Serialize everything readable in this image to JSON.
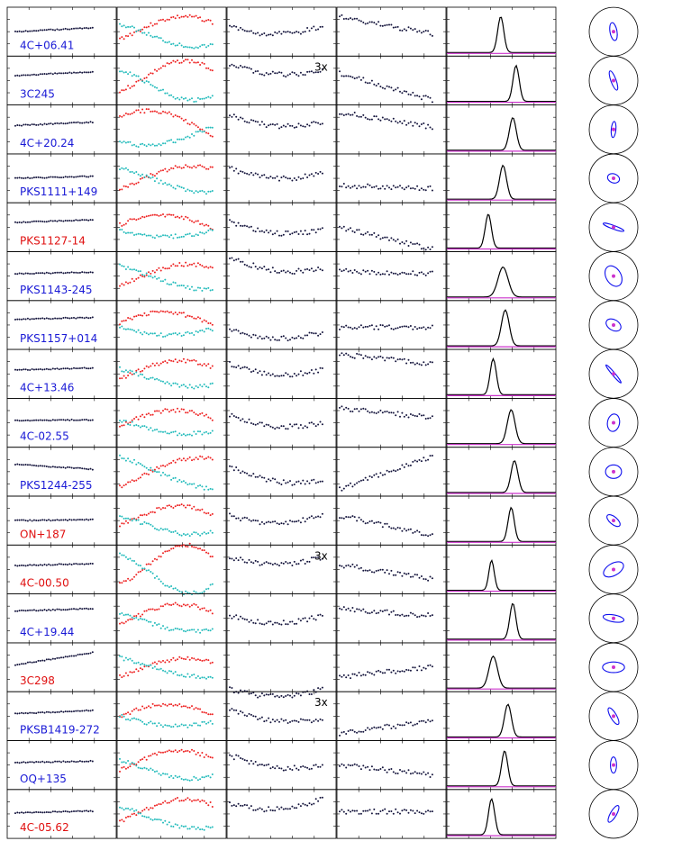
{
  "colors": {
    "blue_label": "#1a1ad6",
    "red_label": "#e01010",
    "red_pts": "#ee2222",
    "cyan_pts": "#22bbbb",
    "dark_pts": "#14143c",
    "profile": "#000000",
    "magenta": "#cc33cc",
    "circle_track": "#1010ee"
  },
  "chart_data": {
    "type": "scatter",
    "columns": 6,
    "rows": [
      {
        "name": "4C+06.41",
        "color": "blue",
        "note": "",
        "ty": [
          0.5,
          0.42
        ],
        "tc": [
          0.65,
          0.72
        ],
        "tr": [
          0.4,
          0.4
        ],
        "tp": [
          0.2,
          0.55
        ],
        "ta": [
          0.48,
          0.1
        ],
        "w": 0.08,
        "pk": 0.9,
        "cr": 0.62,
        "cang": 80,
        "cw": 0.18
      },
      {
        "name": "3C245",
        "color": "blue",
        "note": "3x",
        "ty": [
          0.4,
          0.32
        ],
        "tc": [
          0.72,
          0.85
        ],
        "tr": [
          0.15,
          0.3
        ],
        "tp": [
          0.35,
          0.9
        ],
        "ta": [
          0.95,
          0.25
        ],
        "w": 0.08,
        "pk": 0.9,
        "cr": 0.7,
        "cang": 70,
        "cw": 0.12
      },
      {
        "name": "4C+20.24",
        "color": "blue",
        "note": "",
        "ty": [
          0.42,
          0.35
        ],
        "tc": [
          0.25,
          0.55
        ],
        "tr": [
          0.2,
          0.35
        ],
        "tp": [
          0.15,
          0.45
        ],
        "ta": [
          0.85,
          0.7
        ],
        "w": 0.09,
        "pk": 0.82,
        "cr": 0.55,
        "cang": 95,
        "cw": 0.1
      },
      {
        "name": "PKS1111+149",
        "color": "blue",
        "note": "",
        "ty": [
          0.5,
          0.46
        ],
        "tc": [
          0.72,
          0.55
        ],
        "tr": [
          0.3,
          0.4
        ],
        "tp": [
          0.65,
          0.7
        ],
        "ta": [
          0.55,
          0.35
        ],
        "w": 0.09,
        "pk": 0.85,
        "cr": 0.42,
        "cang": 20,
        "cw": 0.25
      },
      {
        "name": "PKS1127-14",
        "color": "red",
        "note": "",
        "ty": [
          0.4,
          0.35
        ],
        "tc": [
          0.45,
          0.7
        ],
        "tr": [
          0.4,
          0.55
        ],
        "tp": [
          0.5,
          0.95
        ],
        "ta": [
          0.1,
          0.3
        ],
        "w": 0.08,
        "pk": 0.85,
        "cr": 0.75,
        "cang": 20,
        "cw": 0.06
      },
      {
        "name": "PKS1143-245",
        "color": "blue",
        "note": "",
        "ty": [
          0.45,
          0.42
        ],
        "tc": [
          0.7,
          0.55
        ],
        "tr": [
          0.12,
          0.35
        ],
        "tp": [
          0.4,
          0.45
        ],
        "ta": [
          0.55,
          0.25
        ],
        "w": 0.13,
        "pk": 0.75,
        "cr": 0.75,
        "cang": 60,
        "cw": 0.45
      },
      {
        "name": "PKS1157+014",
        "color": "blue",
        "note": "",
        "ty": [
          0.38,
          0.35
        ],
        "tc": [
          0.45,
          0.55
        ],
        "tr": [
          0.6,
          0.65
        ],
        "tp": [
          0.55,
          0.55
        ],
        "ta": [
          0.62,
          0.4
        ],
        "w": 0.1,
        "pk": 0.9,
        "cr": 0.55,
        "cang": 30,
        "cw": 0.3
      },
      {
        "name": "4C+13.46",
        "color": "blue",
        "note": "",
        "ty": [
          0.42,
          0.38
        ],
        "tc": [
          0.6,
          0.7
        ],
        "tr": [
          0.3,
          0.42
        ],
        "tp": [
          0.1,
          0.3
        ],
        "ta": [
          0.25,
          0.8
        ],
        "w": 0.08,
        "pk": 0.9,
        "cr": 0.8,
        "cang": 50,
        "cw": 0.04
      },
      {
        "name": "4C-02.55",
        "color": "blue",
        "note": "",
        "ty": [
          0.45,
          0.44
        ],
        "tc": [
          0.55,
          0.7
        ],
        "tr": [
          0.35,
          0.5
        ],
        "tp": [
          0.2,
          0.4
        ],
        "ta": [
          0.8,
          0.25
        ],
        "w": 0.1,
        "pk": 0.85,
        "cr": 0.6,
        "cang": 100,
        "cw": 0.35
      },
      {
        "name": "PKS1244-255",
        "color": "blue",
        "note": "",
        "ty": [
          0.35,
          0.45
        ],
        "tc": [
          0.8,
          0.55
        ],
        "tr": [
          0.4,
          0.7
        ],
        "tp": [
          0.85,
          0.2
        ],
        "ta": [
          0.9,
          0.3
        ],
        "w": 0.09,
        "pk": 0.8,
        "cr": 0.55,
        "cang": 0,
        "cw": 0.4
      },
      {
        "name": "ON+187",
        "color": "red",
        "note": "",
        "ty": [
          0.5,
          0.48
        ],
        "tc": [
          0.6,
          0.8
        ],
        "tr": [
          0.4,
          0.4
        ],
        "tp": [
          0.4,
          0.8
        ],
        "ta": [
          0.8,
          0.2
        ],
        "w": 0.08,
        "pk": 0.85,
        "cr": 0.55,
        "cang": 40,
        "cw": 0.2
      },
      {
        "name": "4C-00.50",
        "color": "red",
        "note": "3x",
        "ty": [
          0.42,
          0.38
        ],
        "tc": [
          0.8,
          0.9
        ],
        "tr": [
          0.25,
          0.25
        ],
        "tp": [
          0.4,
          0.7
        ],
        "ta": [
          0.2,
          0.35
        ],
        "w": 0.07,
        "pk": 0.75,
        "cr": 0.75,
        "cang": 150,
        "cw": 0.35
      },
      {
        "name": "4C+19.44",
        "color": "blue",
        "note": "",
        "ty": [
          0.35,
          0.3
        ],
        "tc": [
          0.6,
          0.75
        ],
        "tr": [
          0.45,
          0.45
        ],
        "tp": [
          0.3,
          0.45
        ],
        "ta": [
          0.85,
          0.2
        ],
        "w": 0.08,
        "pk": 0.9,
        "cr": 0.72,
        "cang": 10,
        "cw": 0.18
      },
      {
        "name": "3C298",
        "color": "red",
        "note": "",
        "ty": [
          0.45,
          0.2
        ],
        "tc": [
          0.7,
          0.45
        ],
        "tr": [
          0.95,
          0.95
        ],
        "tp": [
          0.7,
          0.5
        ],
        "ta": [
          0.25,
          0.55
        ],
        "w": 0.11,
        "pk": 0.8,
        "cr": 0.75,
        "cang": 0,
        "cw": 0.3
      },
      {
        "name": "PKSB1419-272",
        "color": "blue",
        "note": "3x",
        "ty": [
          0.45,
          0.38
        ],
        "tc": [
          0.5,
          0.6
        ],
        "tr": [
          0.35,
          0.55
        ],
        "tp": [
          0.85,
          0.6
        ],
        "ta": [
          0.7,
          0.25
        ],
        "w": 0.09,
        "pk": 0.82,
        "cr": 0.65,
        "cang": 60,
        "cw": 0.15
      },
      {
        "name": "OQ+135",
        "color": "blue",
        "note": "",
        "ty": [
          0.45,
          0.42
        ],
        "tc": [
          0.6,
          0.8
        ],
        "tr": [
          0.3,
          0.5
        ],
        "tp": [
          0.5,
          0.7
        ],
        "ta": [
          0.6,
          0.2
        ],
        "w": 0.08,
        "pk": 0.88,
        "cr": 0.55,
        "cang": 90,
        "cw": 0.15
      },
      {
        "name": "4C-05.62",
        "color": "red",
        "note": "",
        "ty": [
          0.48,
          0.44
        ],
        "tc": [
          0.65,
          0.7
        ],
        "tr": [
          0.3,
          0.2
        ],
        "tp": [
          0.45,
          0.45
        ],
        "ta": [
          0.2,
          0.85
        ],
        "w": 0.08,
        "pk": 0.9,
        "cr": 0.65,
        "cang": 120,
        "cw": 0.15
      }
    ]
  }
}
